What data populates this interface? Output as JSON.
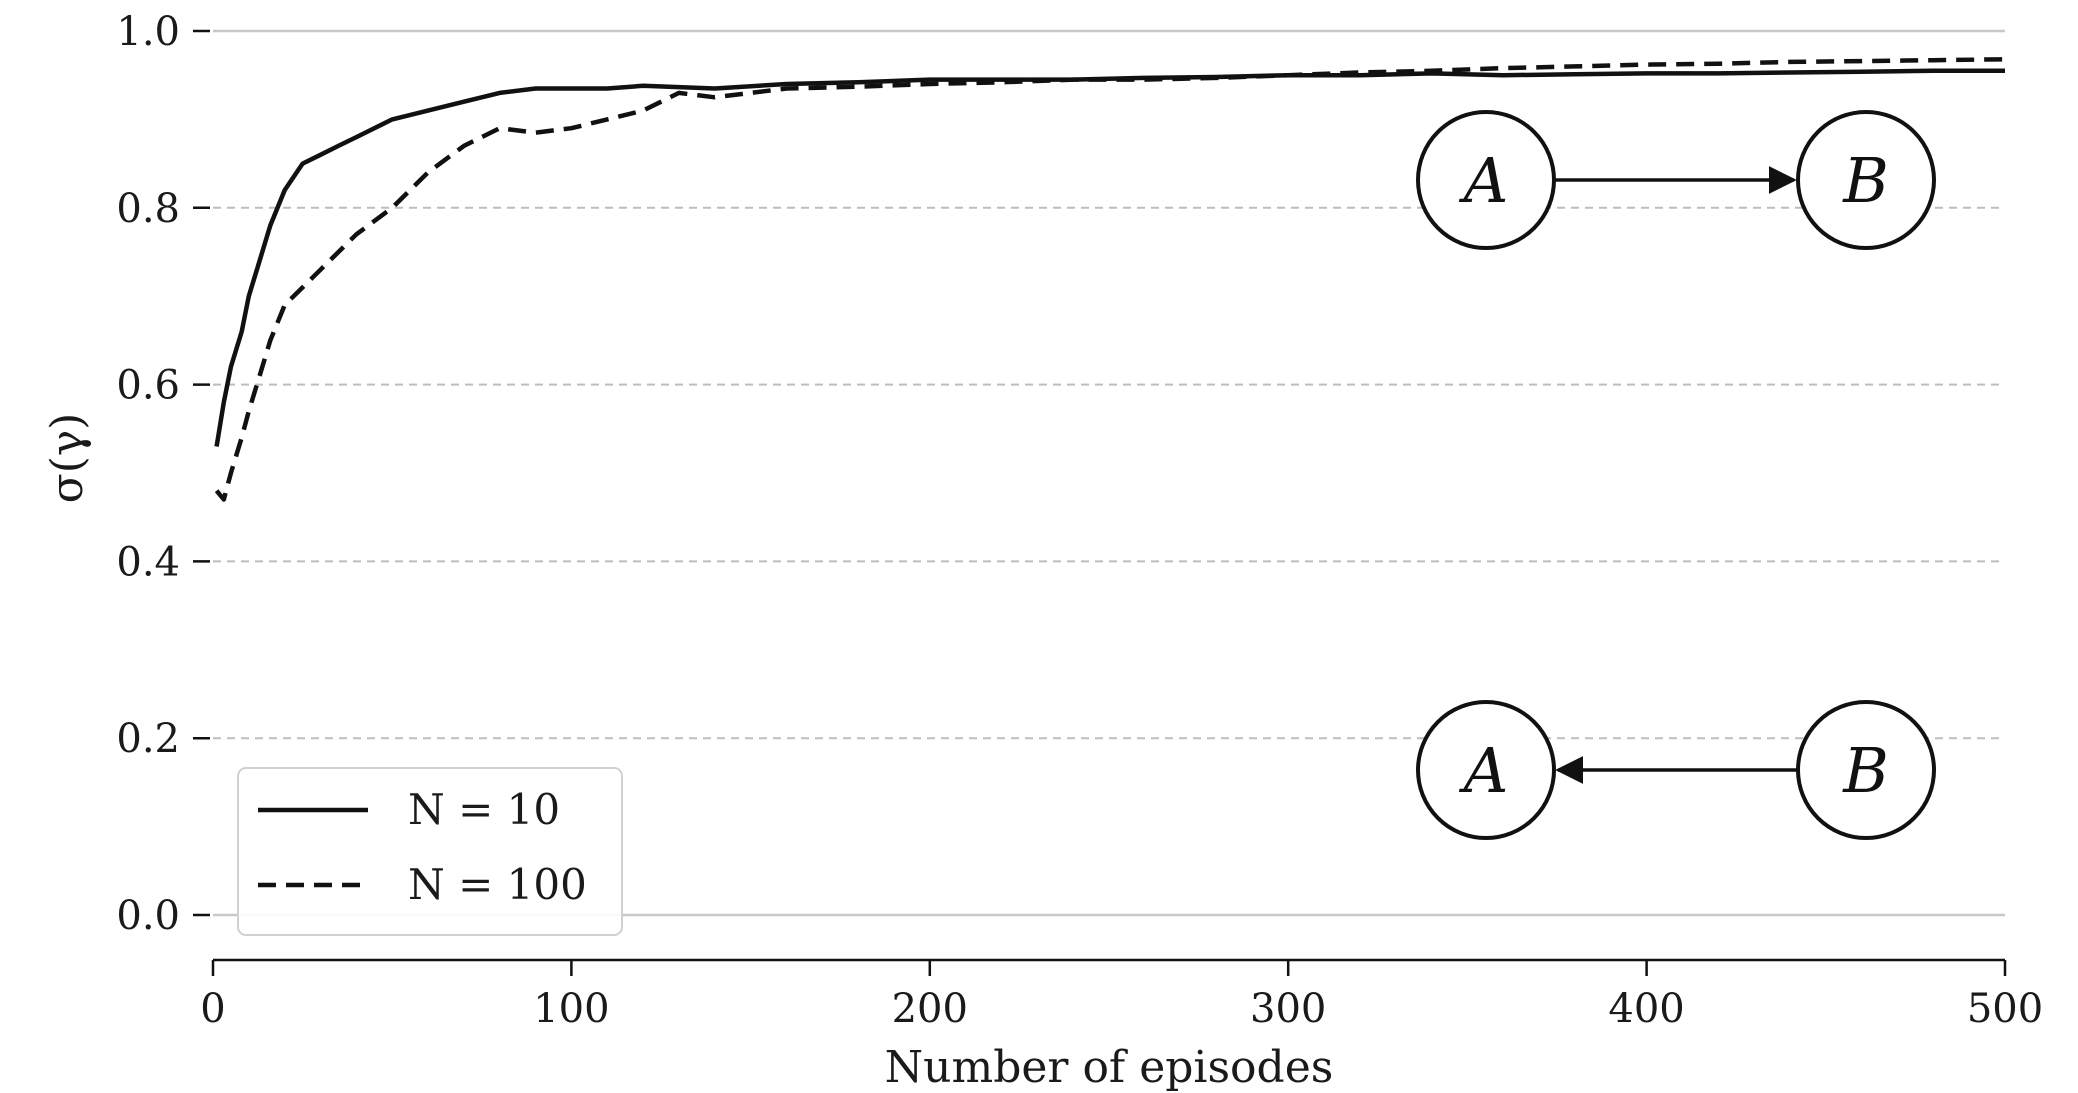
{
  "chart_data": {
    "type": "line",
    "xlabel": "Number of episodes",
    "ylabel": "σ(γ)",
    "xlim": [
      0,
      500
    ],
    "ylim": [
      -0.05,
      1.03
    ],
    "xticks": [
      0,
      100,
      200,
      300,
      400,
      500
    ],
    "xtick_labels": [
      "0",
      "100",
      "200",
      "300",
      "400",
      "500"
    ],
    "yticks": [
      0.0,
      0.2,
      0.4,
      0.6,
      0.8,
      1.0
    ],
    "ytick_labels": [
      "0.0",
      "0.2",
      "0.4",
      "0.6",
      "0.8",
      "1.0"
    ],
    "grid": "horizontal dashed",
    "legend_position": "lower-left",
    "series": [
      {
        "name": "N = 10",
        "style": "solid",
        "color": "#111111",
        "x": [
          1,
          3,
          5,
          8,
          10,
          13,
          16,
          20,
          25,
          30,
          35,
          40,
          50,
          60,
          70,
          80,
          90,
          100,
          110,
          120,
          140,
          160,
          180,
          200,
          220,
          240,
          260,
          280,
          300,
          320,
          340,
          360,
          380,
          400,
          420,
          440,
          460,
          480,
          500
        ],
        "y": [
          0.53,
          0.58,
          0.62,
          0.66,
          0.7,
          0.74,
          0.78,
          0.82,
          0.85,
          0.86,
          0.87,
          0.88,
          0.9,
          0.91,
          0.92,
          0.93,
          0.935,
          0.935,
          0.935,
          0.938,
          0.935,
          0.94,
          0.942,
          0.945,
          0.945,
          0.945,
          0.947,
          0.948,
          0.95,
          0.95,
          0.952,
          0.95,
          0.951,
          0.952,
          0.952,
          0.953,
          0.954,
          0.955,
          0.955
        ]
      },
      {
        "name": "N = 100",
        "style": "dashed",
        "color": "#111111",
        "x": [
          1,
          3,
          5,
          8,
          10,
          13,
          16,
          20,
          25,
          30,
          40,
          50,
          60,
          70,
          80,
          90,
          100,
          110,
          120,
          130,
          140,
          150,
          160,
          180,
          200,
          220,
          240,
          260,
          280,
          300,
          320,
          340,
          360,
          380,
          400,
          420,
          440,
          460,
          480,
          500
        ],
        "y": [
          0.48,
          0.47,
          0.5,
          0.54,
          0.57,
          0.61,
          0.65,
          0.69,
          0.71,
          0.73,
          0.77,
          0.8,
          0.84,
          0.87,
          0.89,
          0.885,
          0.89,
          0.9,
          0.91,
          0.93,
          0.925,
          0.93,
          0.935,
          0.937,
          0.94,
          0.942,
          0.945,
          0.945,
          0.947,
          0.95,
          0.953,
          0.955,
          0.958,
          0.96,
          0.962,
          0.963,
          0.965,
          0.966,
          0.967,
          0.968
        ]
      }
    ]
  },
  "diagrams": [
    {
      "source": "A",
      "target": "B",
      "direction": "A→B"
    },
    {
      "source": "B",
      "target": "A",
      "direction": "B→A"
    }
  ]
}
